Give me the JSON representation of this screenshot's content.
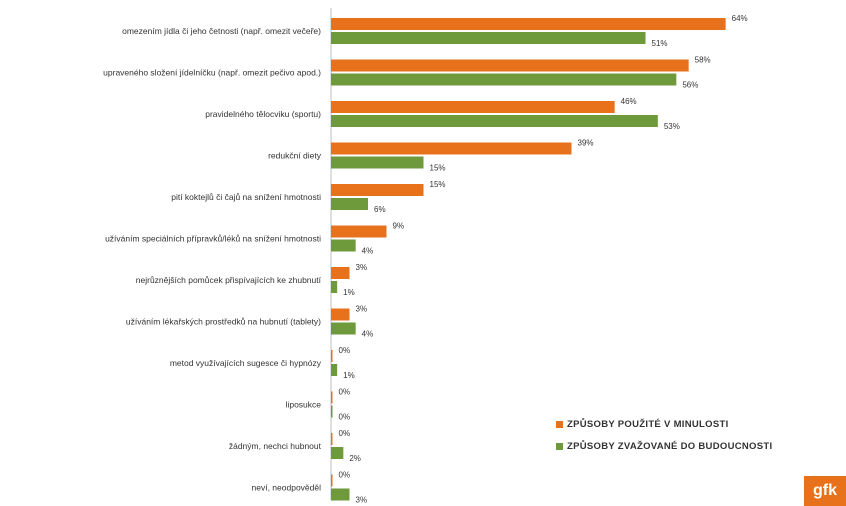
{
  "chart_data": {
    "type": "bar",
    "orientation": "horizontal",
    "categories": [
      "omezením jídla či jeho četnosti (např. omezit večeře)",
      "upraveného složení jídelníčku (např. omezit pečivo apod.)",
      "pravidelného tělocviku (sportu)",
      "redukční diety",
      "pití koktejlů či čajů na snížení hmotnosti",
      "užíváním speciálních přípravků/léků na snížení hmotnosti",
      "nejrůznějších pomůcek přispívajících ke zhubnutí",
      "užíváním lékařských prostředků na hubnutí (tablety)",
      "metod využívajících sugesce či hypnózy",
      "liposukce",
      "žádným, nechci hubnout",
      "neví, neodpověděl"
    ],
    "series": [
      {
        "name": "ZPŮSOBY POUŽITÉ V MINULOSTI",
        "color": "#e8721c",
        "values": [
          64,
          58,
          46,
          39,
          15,
          9,
          3,
          3,
          0,
          0,
          0,
          0
        ],
        "labels": [
          "64%",
          "58%",
          "46%",
          "39%",
          "15%",
          "9%",
          "3%",
          "3%",
          "0%",
          "0%",
          "0%",
          "0%"
        ]
      },
      {
        "name": "ZPŮSOBY ZVAŽOVANÉ DO BUDOUCNOSTI",
        "color": "#6e9a3c",
        "values": [
          51,
          56,
          53,
          15,
          6,
          4,
          1,
          4,
          1,
          0,
          2,
          3
        ],
        "labels": [
          "51%",
          "56%",
          "53%",
          "15%",
          "6%",
          "4%",
          "1%",
          "4%",
          "1%",
          "0%",
          "2%",
          "3%"
        ]
      }
    ],
    "xlim": [
      0,
      72
    ],
    "grid": false,
    "legend_position": "bottom-right",
    "logo_text": "gfk"
  }
}
